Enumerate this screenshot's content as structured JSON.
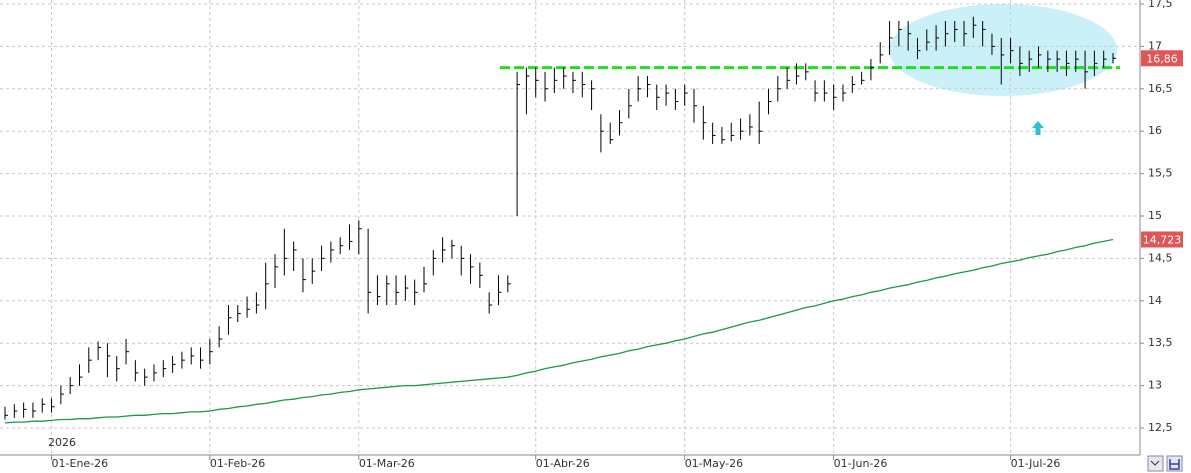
{
  "chart_data": {
    "type": "ohlc",
    "annotation": "2026",
    "categories": [
      null,
      null,
      null,
      null,
      null,
      "01-Ene-26",
      null,
      null,
      null,
      null,
      null,
      null,
      null,
      null,
      null,
      null,
      null,
      null,
      null,
      null,
      null,
      null,
      "01-Feb-26",
      null,
      null,
      null,
      null,
      null,
      null,
      null,
      null,
      null,
      null,
      null,
      null,
      null,
      null,
      null,
      "01-Mar-26",
      null,
      null,
      null,
      null,
      null,
      null,
      null,
      null,
      null,
      null,
      null,
      null,
      null,
      null,
      null,
      null,
      null,
      null,
      "01-Abr-26",
      null,
      null,
      null,
      null,
      null,
      null,
      null,
      null,
      null,
      null,
      null,
      null,
      null,
      null,
      null,
      "01-May-26",
      null,
      null,
      null,
      null,
      null,
      null,
      null,
      null,
      null,
      null,
      null,
      null,
      null,
      null,
      null,
      "01-Jun-26",
      null,
      null,
      null,
      null,
      null,
      null,
      null,
      null,
      null,
      null,
      null,
      null,
      null,
      null,
      null,
      null,
      null,
      null,
      "01-Jul-26",
      null,
      null,
      null,
      null,
      null,
      null,
      null,
      null,
      null,
      null,
      null
    ],
    "high": [
      12.75,
      12.78,
      12.8,
      12.8,
      12.85,
      12.85,
      13.0,
      13.1,
      13.25,
      13.45,
      13.52,
      13.5,
      13.35,
      13.55,
      13.3,
      13.2,
      13.25,
      13.3,
      13.35,
      13.4,
      13.45,
      13.45,
      13.55,
      13.7,
      13.95,
      13.95,
      14.05,
      14.1,
      14.45,
      14.55,
      14.85,
      14.7,
      14.5,
      14.5,
      14.65,
      14.7,
      14.75,
      14.9,
      14.95,
      14.85,
      14.3,
      14.3,
      14.3,
      14.3,
      14.25,
      14.4,
      14.6,
      14.75,
      14.72,
      14.65,
      14.55,
      14.45,
      14.1,
      14.3,
      14.3,
      16.7,
      16.75,
      16.75,
      16.7,
      16.75,
      16.75,
      16.7,
      16.7,
      16.6,
      16.2,
      16.1,
      16.25,
      16.5,
      16.65,
      16.65,
      16.55,
      16.55,
      16.5,
      16.55,
      16.5,
      16.3,
      16.1,
      16.05,
      16.1,
      16.15,
      16.2,
      16.35,
      16.5,
      16.65,
      16.75,
      16.8,
      16.8,
      16.6,
      16.6,
      16.55,
      16.55,
      16.65,
      16.7,
      16.85,
      17.05,
      17.3,
      17.3,
      17.3,
      17.1,
      17.2,
      17.25,
      17.3,
      17.3,
      17.3,
      17.35,
      17.3,
      17.15,
      17.1,
      17.1,
      17.0,
      16.95,
      17.0,
      16.95,
      16.95,
      16.95,
      16.95,
      16.95,
      16.95,
      16.95,
      16.92
    ],
    "low": [
      12.6,
      12.62,
      12.62,
      12.62,
      12.68,
      12.68,
      12.78,
      12.9,
      13.0,
      13.15,
      13.3,
      13.1,
      13.05,
      13.25,
      13.05,
      13.0,
      13.05,
      13.1,
      13.15,
      13.2,
      13.25,
      13.2,
      13.25,
      13.45,
      13.6,
      13.75,
      13.8,
      13.85,
      13.9,
      14.15,
      14.3,
      14.35,
      14.1,
      14.2,
      14.35,
      14.45,
      14.55,
      14.6,
      14.55,
      13.85,
      13.95,
      13.95,
      13.95,
      14.0,
      13.95,
      14.1,
      14.3,
      14.45,
      14.5,
      14.3,
      14.2,
      14.15,
      13.85,
      13.95,
      14.1,
      15.0,
      16.2,
      16.4,
      16.35,
      16.45,
      16.5,
      16.45,
      16.4,
      16.25,
      15.75,
      15.85,
      15.95,
      16.15,
      16.35,
      16.4,
      16.25,
      16.3,
      16.25,
      16.3,
      16.1,
      15.9,
      15.85,
      15.85,
      15.88,
      15.9,
      15.95,
      15.85,
      16.2,
      16.35,
      16.5,
      16.55,
      16.6,
      16.35,
      16.35,
      16.25,
      16.35,
      16.45,
      16.55,
      16.6,
      16.8,
      16.9,
      17.0,
      16.95,
      16.85,
      16.95,
      16.95,
      17.0,
      17.05,
      17.0,
      17.1,
      17.0,
      16.9,
      16.55,
      16.8,
      16.65,
      16.7,
      16.75,
      16.7,
      16.7,
      16.65,
      16.7,
      16.5,
      16.65,
      16.75,
      16.8
    ],
    "close": [
      12.65,
      12.7,
      12.72,
      12.7,
      12.78,
      12.75,
      12.9,
      13.0,
      13.1,
      13.3,
      13.45,
      13.35,
      13.2,
      13.4,
      13.15,
      13.1,
      13.15,
      13.2,
      13.25,
      13.3,
      13.35,
      13.3,
      13.4,
      13.55,
      13.8,
      13.85,
      13.9,
      13.95,
      14.2,
      14.4,
      14.5,
      14.6,
      14.25,
      14.35,
      14.5,
      14.6,
      14.65,
      14.7,
      14.85,
      14.1,
      14.05,
      14.2,
      14.1,
      14.15,
      14.1,
      14.2,
      14.5,
      14.6,
      14.65,
      14.5,
      14.4,
      14.3,
      13.95,
      14.1,
      14.2,
      16.55,
      16.65,
      16.6,
      16.5,
      16.6,
      16.65,
      16.6,
      16.55,
      16.5,
      16.0,
      15.9,
      16.1,
      16.3,
      16.5,
      16.55,
      16.4,
      16.45,
      16.35,
      16.45,
      16.3,
      16.1,
      15.95,
      15.9,
      15.95,
      16.0,
      16.05,
      16.0,
      16.35,
      16.5,
      16.6,
      16.65,
      16.7,
      16.45,
      16.45,
      16.4,
      16.45,
      16.55,
      16.6,
      16.75,
      16.9,
      17.1,
      17.2,
      17.15,
      16.95,
      17.05,
      17.1,
      17.15,
      17.2,
      17.15,
      17.25,
      17.2,
      17.0,
      16.9,
      16.95,
      16.8,
      16.85,
      16.9,
      16.85,
      16.85,
      16.8,
      16.85,
      16.7,
      16.8,
      16.85,
      16.86
    ],
    "close_label": "16,86",
    "color": "#000000",
    "ma": {
      "color": "#1a9a4a",
      "values": [
        12.56,
        12.57,
        12.57,
        12.58,
        12.58,
        12.59,
        12.6,
        12.6,
        12.61,
        12.61,
        12.62,
        12.63,
        12.63,
        12.64,
        12.65,
        12.65,
        12.66,
        12.67,
        12.67,
        12.68,
        12.69,
        12.69,
        12.7,
        12.72,
        12.73,
        12.75,
        12.76,
        12.78,
        12.79,
        12.81,
        12.83,
        12.84,
        12.86,
        12.87,
        12.89,
        12.9,
        12.92,
        12.93,
        12.95,
        12.96,
        12.97,
        12.98,
        12.99,
        13.0,
        13.0,
        13.01,
        13.02,
        13.03,
        13.04,
        13.05,
        13.06,
        13.07,
        13.08,
        13.09,
        13.1,
        13.12,
        13.15,
        13.17,
        13.2,
        13.22,
        13.24,
        13.27,
        13.29,
        13.31,
        13.34,
        13.36,
        13.38,
        13.41,
        13.43,
        13.46,
        13.48,
        13.5,
        13.53,
        13.55,
        13.58,
        13.61,
        13.63,
        13.66,
        13.69,
        13.72,
        13.75,
        13.77,
        13.8,
        13.83,
        13.86,
        13.89,
        13.92,
        13.94,
        13.97,
        14.0,
        14.02,
        14.05,
        14.07,
        14.1,
        14.12,
        14.15,
        14.17,
        14.19,
        14.22,
        14.24,
        14.27,
        14.29,
        14.32,
        14.34,
        14.36,
        14.39,
        14.41,
        14.44,
        14.46,
        14.48,
        14.51,
        14.53,
        14.55,
        14.58,
        14.6,
        14.63,
        14.65,
        14.68,
        14.7,
        14.723
      ],
      "last_label": "14,723"
    },
    "resistance": {
      "value": 16.75,
      "color": "#22dd22"
    },
    "label_color": "#e05555",
    "ylim": [
      12.5,
      17.5
    ],
    "yticks": [
      {
        "value": 12.5,
        "label": "12,5"
      },
      13,
      {
        "value": 13.5,
        "label": "13,5"
      },
      14,
      {
        "value": 14.5,
        "label": "14,5"
      },
      15,
      {
        "value": 15.5,
        "label": "15,5"
      },
      16,
      {
        "value": 16.5,
        "label": "16,5"
      },
      17,
      {
        "value": 17.5,
        "label": "17,5"
      }
    ],
    "grid": true
  }
}
